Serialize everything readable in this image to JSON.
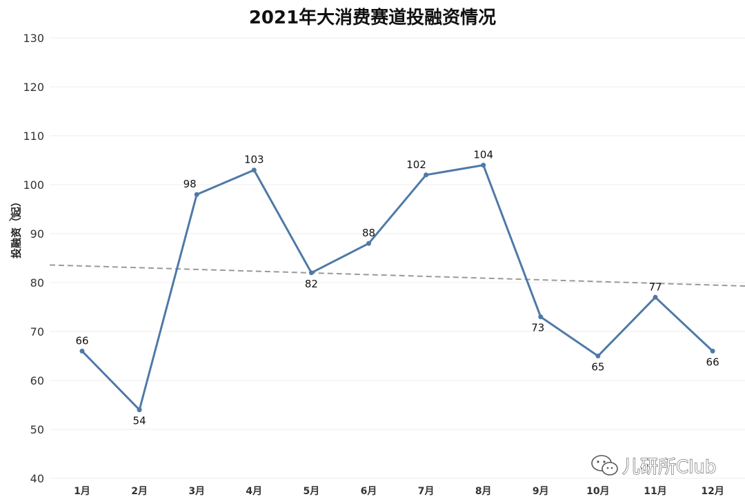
{
  "chart_data": {
    "type": "line",
    "title": "2021年大消费赛道投融资情况",
    "ylabel": "投融资（起）",
    "categories": [
      "1月",
      "2月",
      "3月",
      "4月",
      "5月",
      "6月",
      "7月",
      "8月",
      "9月",
      "10月",
      "11月",
      "12月"
    ],
    "series": [
      {
        "values": [
          66,
          54,
          98,
          103,
          82,
          88,
          102,
          104,
          73,
          65,
          77,
          66
        ]
      }
    ],
    "ylim": [
      40,
      130
    ],
    "yticks": [
      40,
      50,
      60,
      70,
      80,
      90,
      100,
      110,
      120,
      130
    ],
    "trend_line": {
      "start": 83.6,
      "end": 79.3,
      "style": "dashed"
    },
    "grid": true,
    "colors": {
      "series": "#4e79a7",
      "trend": "#999999"
    }
  },
  "watermark": {
    "text": "儿研所Club",
    "icon": "wechat-icon"
  }
}
